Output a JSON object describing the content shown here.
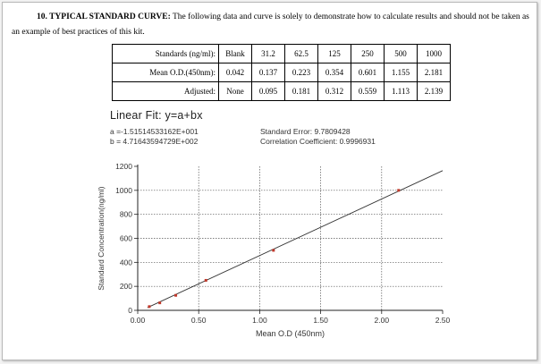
{
  "heading": {
    "number": "10. TYPICAL STANDARD CURVE:",
    "text": "The following data and curve is solely to demonstrate how to calculate results and should not be taken as an example of best practices of this kit."
  },
  "table": {
    "rows": [
      {
        "label": "Standards (ng/ml):",
        "cells": [
          "Blank",
          "31.2",
          "62.5",
          "125",
          "250",
          "500",
          "1000"
        ]
      },
      {
        "label": "Mean O.D.(450nm):",
        "cells": [
          "0.042",
          "0.137",
          "0.223",
          "0.354",
          "0.601",
          "1.155",
          "2.181"
        ]
      },
      {
        "label": "Adjusted:",
        "cells": [
          "None",
          "0.095",
          "0.181",
          "0.312",
          "0.559",
          "1.113",
          "2.139"
        ]
      }
    ]
  },
  "fit": {
    "title": "Linear Fit: y=a+bx",
    "a": "a =-1.51514533162E+001",
    "b": "b = 4.71643594729E+002",
    "std_error": "Standard Error: 9.7809428",
    "correlation": "Correlation Coefficient: 0.9996931"
  },
  "chart_data": {
    "type": "scatter",
    "xlabel": "Mean O.D (450nm)",
    "ylabel": "Standard Concentration(ng/ml)",
    "xlim": [
      0,
      2.5
    ],
    "ylim": [
      0,
      1200
    ],
    "xticks": [
      "0.00",
      "0.50",
      "1.00",
      "1.50",
      "2.00",
      "2.50"
    ],
    "yticks": [
      "0",
      "200",
      "400",
      "600",
      "800",
      "1000",
      "1200"
    ],
    "grid": true,
    "points": [
      {
        "x": 0.095,
        "y": 31.2
      },
      {
        "x": 0.181,
        "y": 62.5
      },
      {
        "x": 0.312,
        "y": 125
      },
      {
        "x": 0.559,
        "y": 250
      },
      {
        "x": 1.113,
        "y": 500
      },
      {
        "x": 2.139,
        "y": 1000
      }
    ],
    "fit_line": {
      "intercept": -15.1514533162,
      "slope": 471.643594729
    },
    "colors": {
      "line": "#333333",
      "point": "#c0392b",
      "grid": "#555555"
    }
  }
}
